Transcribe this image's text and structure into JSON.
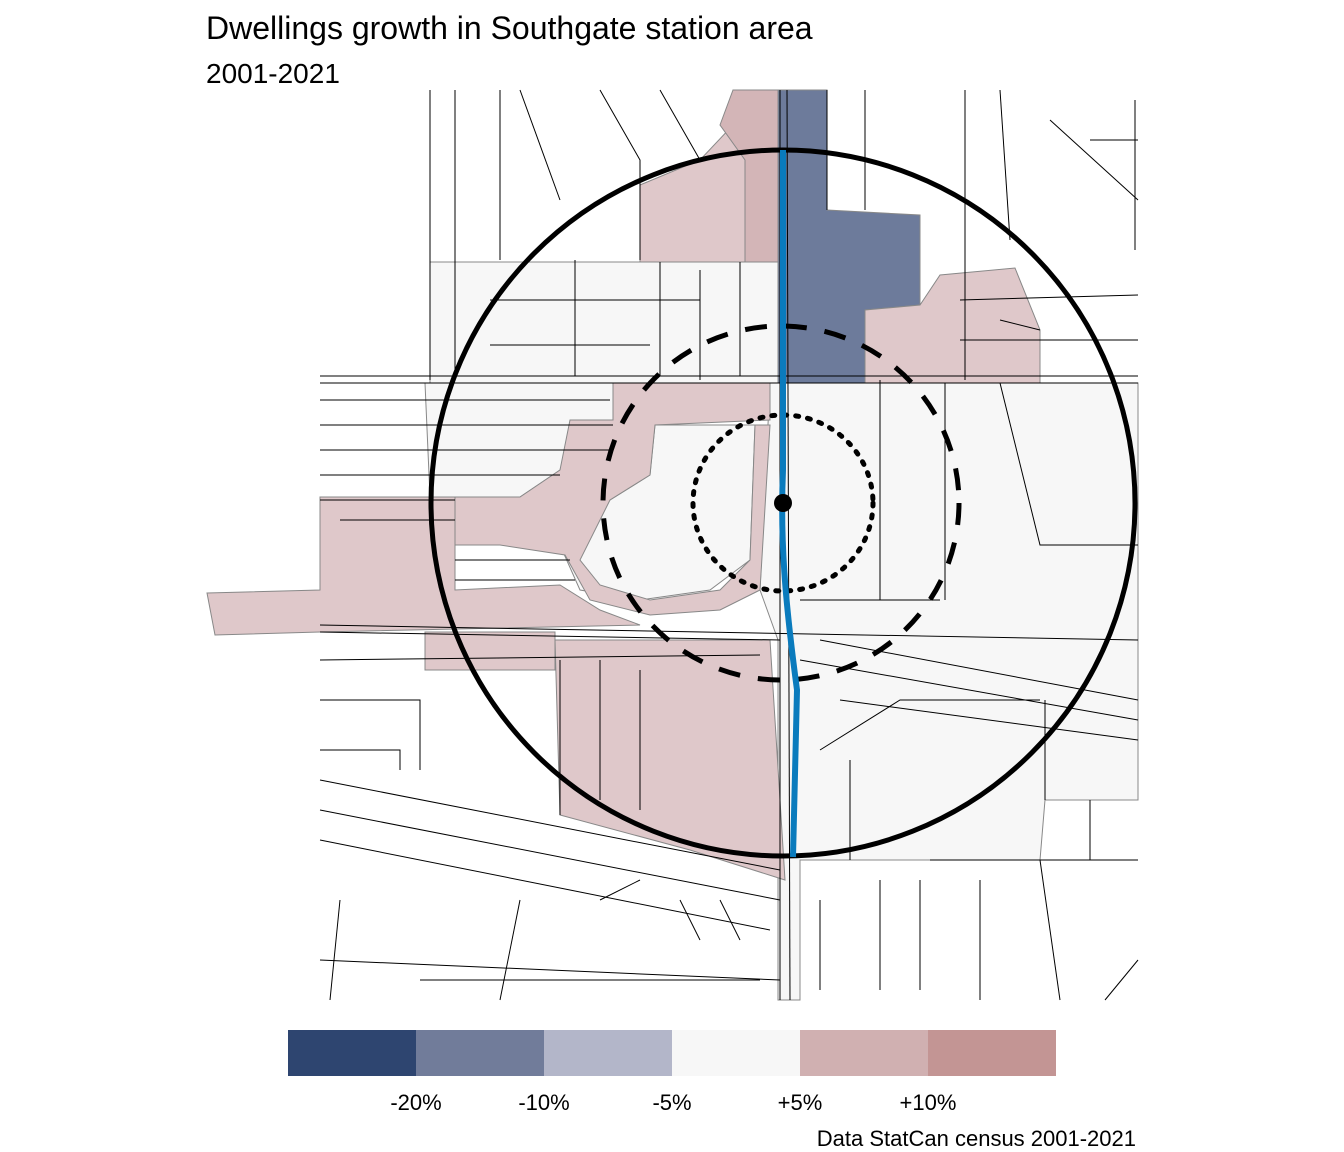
{
  "title": "Dwellings growth in Southgate station area",
  "subtitle": "2001-2021",
  "caption": "Data StatCan census 2001-2021",
  "legend": {
    "bins": [
      {
        "color": "#2e4570"
      },
      {
        "color": "#717c9a"
      },
      {
        "color": "#b3b6c9"
      },
      {
        "color": "#f7f7f7"
      },
      {
        "color": "#d0b0b1"
      },
      {
        "color": "#c39594"
      }
    ],
    "tick_labels": [
      "-20%",
      "-10%",
      "-5%",
      "+5%",
      "+10%"
    ]
  },
  "map": {
    "fill_colors": {
      "decline_10_20": "#6d7b9b",
      "stable": "#f7f7f7",
      "growth_5_10": "#dfc8ca",
      "growth_5_10_alt": "#d3b5b7"
    },
    "rings": [
      "solid",
      "dashed",
      "dotted"
    ],
    "transit_line_color": "#0a7bbd"
  }
}
